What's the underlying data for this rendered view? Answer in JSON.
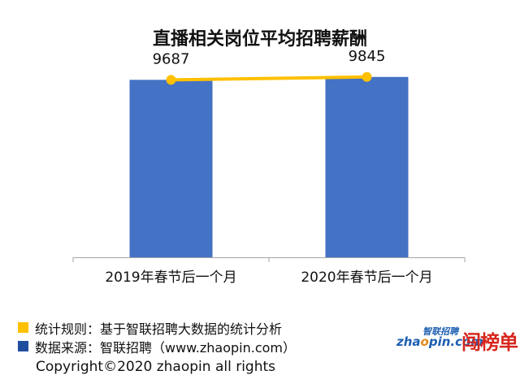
{
  "chart_data": {
    "type": "bar",
    "title": "直播相关岗位平均招聘薪酬",
    "categories": [
      "2019年春节后一个月",
      "2020年春节后一个月"
    ],
    "values": [
      9687,
      9845
    ],
    "data_labels": [
      "9687",
      "9845"
    ],
    "ylim": [
      0,
      10500
    ],
    "overlay_line": true,
    "grid": false,
    "colors": {
      "bar": "#4472c4",
      "line": "#ffc000"
    }
  },
  "notes": [
    {
      "text": "统计规则：基于智联招聘大数据的统计分析",
      "color": "#ffc000"
    },
    {
      "text": "数据来源：智联招聘（www.zhaopin.com）",
      "color": "#1f4e9f"
    }
  ],
  "copyright": "Copyright©2020 zhaopin all rights",
  "logo": {
    "top": "智联招聘",
    "main_prefix": "zha",
    "main_o": "o",
    "main_suffix": "pin.com",
    "side": "闯榜单"
  }
}
